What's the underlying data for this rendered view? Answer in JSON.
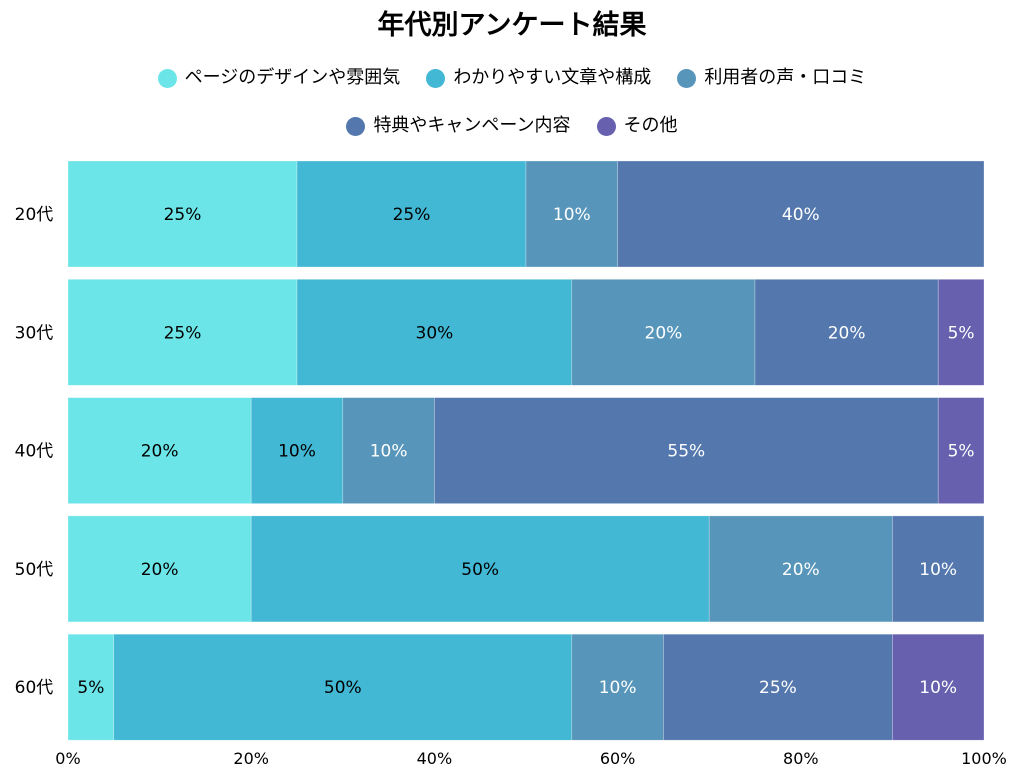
{
  "chart_data": {
    "type": "bar",
    "orientation": "horizontal",
    "stacked": true,
    "title": "年代別アンケート結果",
    "categories": [
      "20代",
      "30代",
      "40代",
      "50代",
      "60代"
    ],
    "series": [
      {
        "name": "ページのデザインや雰囲気",
        "color": "#6ce5e8",
        "values": [
          25,
          25,
          20,
          20,
          5
        ]
      },
      {
        "name": "わかりやすい文章や構成",
        "color": "#42b8d5",
        "values": [
          25,
          30,
          10,
          50,
          50
        ]
      },
      {
        "name": "利用者の声・口コミ",
        "color": "#5796ba",
        "values": [
          10,
          20,
          10,
          20,
          10
        ]
      },
      {
        "name": "特典やキャンペーン内容",
        "color": "#5478ae",
        "values": [
          40,
          20,
          55,
          10,
          25
        ]
      },
      {
        "name": "その他",
        "color": "#6660ae",
        "values": [
          0,
          5,
          5,
          0,
          10
        ]
      }
    ],
    "xlim": [
      0,
      100
    ],
    "xticks": [
      "0%",
      "20%",
      "40%",
      "60%",
      "80%",
      "100%"
    ],
    "value_suffix": "%",
    "legend_position": "top",
    "grid": false,
    "label_colors": [
      "#000000",
      "#000000",
      "#ffffff",
      "#ffffff",
      "#ffffff"
    ]
  }
}
